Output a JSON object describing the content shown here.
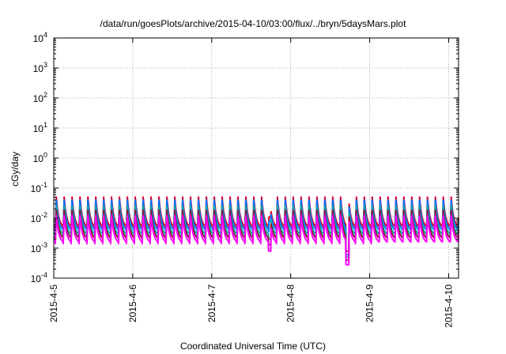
{
  "chart_data": {
    "type": "line",
    "title": "/data/run/goesPlots/archive/2015-04-10/03:00/flux/../bryn/5daysMars.plot",
    "xlabel": "Coordinated Universal Time (UTC)",
    "ylabel": "cGy/day",
    "y_scale": "log",
    "ylim": [
      0.0001,
      10000
    ],
    "y_ticks": [
      {
        "value": 0.0001,
        "base": "10",
        "exp": "-4"
      },
      {
        "value": 0.001,
        "base": "10",
        "exp": "-3"
      },
      {
        "value": 0.01,
        "base": "10",
        "exp": "-2"
      },
      {
        "value": 0.1,
        "base": "10",
        "exp": "-1"
      },
      {
        "value": 1,
        "base": "10",
        "exp": "0"
      },
      {
        "value": 10,
        "base": "10",
        "exp": "1"
      },
      {
        "value": 100,
        "base": "10",
        "exp": "2"
      },
      {
        "value": 1000,
        "base": "10",
        "exp": "3"
      },
      {
        "value": 10000,
        "base": "10",
        "exp": "4"
      }
    ],
    "x_ticks": [
      "2015-4-5",
      "2015-4-6",
      "2015-4-7",
      "2015-4-8",
      "2015-4-9",
      "2015-4-10"
    ],
    "xlim": [
      "2015-04-05 00:00",
      "2015-04-10 03:00"
    ],
    "grid": true,
    "legend": "none",
    "pattern": {
      "note": "sawtooth, sharp rise every ~2.4 h then decay",
      "period_hours": 2.4
    },
    "series": [
      {
        "color": "#e8001c",
        "peak": 0.05,
        "trough": 0.0045,
        "dip_ranges": [
          [
            2.72,
            2.75,
            0.011
          ],
          [
            3.7,
            3.74,
            0.0008
          ]
        ]
      },
      {
        "color": "#0072ff",
        "peak": 0.04,
        "trough": 0.0035,
        "dip_ranges": [
          [
            2.72,
            2.75,
            0.008
          ],
          [
            3.7,
            3.74,
            0.0006
          ]
        ]
      },
      {
        "color": "#00a9a0",
        "peak": 0.025,
        "trough": 0.0025,
        "dip_ranges": [
          [
            2.72,
            2.75,
            0.002
          ],
          [
            3.7,
            3.74,
            0.0005
          ]
        ]
      },
      {
        "color": "#8b1a3a",
        "peak": 0.018,
        "trough": 0.0019,
        "dip_ranges": [
          [
            2.72,
            2.75,
            0.0013
          ],
          [
            3.7,
            3.74,
            0.0004
          ]
        ]
      },
      {
        "color": "#ff00ff",
        "peak": 0.012,
        "trough": 0.0014,
        "dip_ranges": [
          [
            2.72,
            2.75,
            0.0008
          ],
          [
            3.7,
            3.74,
            0.00028
          ]
        ]
      }
    ]
  }
}
